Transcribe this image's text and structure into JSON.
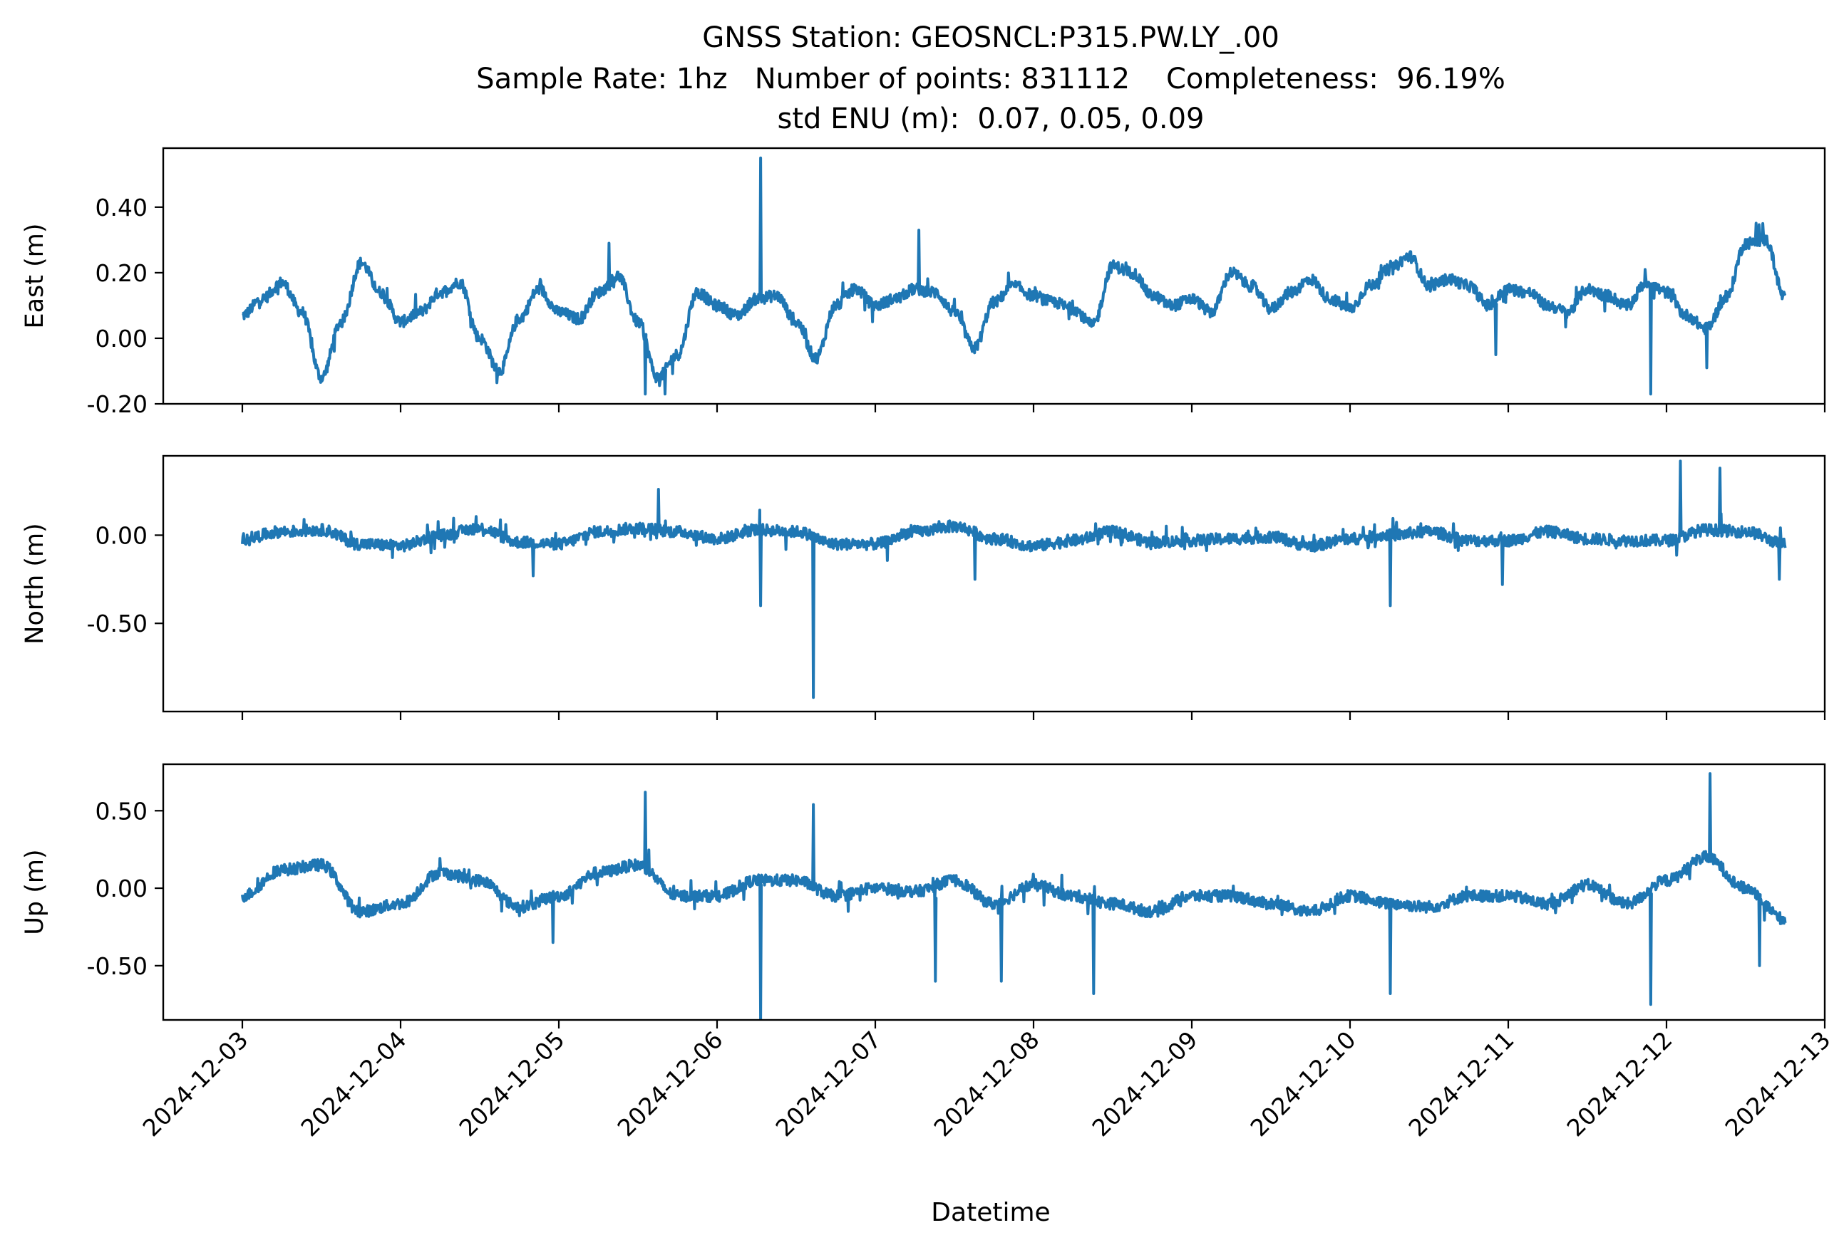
{
  "chart_data": {
    "type": "line",
    "title": "GNSS Station: GEOSNCL:P315.PW.LY_.00",
    "subtitle": "Sample Rate: 1hz   Number of points: 831112    Completeness:  96.19%",
    "subtitle2": "std ENU (m):  0.07, 0.05, 0.09",
    "xlabel": "Datetime",
    "x_ticks": [
      "2024-12-03",
      "2024-12-04",
      "2024-12-05",
      "2024-12-06",
      "2024-12-07",
      "2024-12-08",
      "2024-12-09",
      "2024-12-10",
      "2024-12-11",
      "2024-12-12",
      "2024-12-13"
    ],
    "xlim": [
      "2024-12-02T12:00",
      "2024-12-13T00:00"
    ],
    "line_color": "#1f77b4",
    "grid": false,
    "panels": [
      {
        "ylabel": "East (m)",
        "ylim": [
          -0.2,
          0.58
        ],
        "y_ticks": [
          {
            "v": -0.2,
            "label": "-0.20"
          },
          {
            "v": 0.0,
            "label": "0.00"
          },
          {
            "v": 0.2,
            "label": "0.20"
          },
          {
            "v": 0.4,
            "label": "0.40"
          }
        ],
        "series": {
          "x": [
            "2024-12-03T00:00",
            "2024-12-03T03:00",
            "2024-12-03T06:00",
            "2024-12-03T09:00",
            "2024-12-03T12:00",
            "2024-12-03T15:00",
            "2024-12-03T18:00",
            "2024-12-03T21:00",
            "2024-12-04T00:00",
            "2024-12-04T03:00",
            "2024-12-04T06:00",
            "2024-12-04T09:00",
            "2024-12-04T12:00",
            "2024-12-04T15:00",
            "2024-12-04T18:00",
            "2024-12-04T21:00",
            "2024-12-05T00:00",
            "2024-12-05T03:00",
            "2024-12-05T06:00",
            "2024-12-05T09:00",
            "2024-12-05T12:00",
            "2024-12-05T15:00",
            "2024-12-05T18:00",
            "2024-12-05T21:00",
            "2024-12-06T00:00",
            "2024-12-06T03:00",
            "2024-12-06T06:00",
            "2024-12-06T09:00",
            "2024-12-06T12:00",
            "2024-12-06T15:00",
            "2024-12-06T18:00",
            "2024-12-06T21:00",
            "2024-12-07T00:00",
            "2024-12-07T03:00",
            "2024-12-07T06:00",
            "2024-12-07T09:00",
            "2024-12-07T12:00",
            "2024-12-07T15:00",
            "2024-12-07T18:00",
            "2024-12-07T21:00",
            "2024-12-08T00:00",
            "2024-12-08T03:00",
            "2024-12-08T06:00",
            "2024-12-08T09:00",
            "2024-12-08T12:00",
            "2024-12-08T15:00",
            "2024-12-08T18:00",
            "2024-12-08T21:00",
            "2024-12-09T00:00",
            "2024-12-09T03:00",
            "2024-12-09T06:00",
            "2024-12-09T09:00",
            "2024-12-09T12:00",
            "2024-12-09T15:00",
            "2024-12-09T18:00",
            "2024-12-09T21:00",
            "2024-12-10T00:00",
            "2024-12-10T03:00",
            "2024-12-10T06:00",
            "2024-12-10T09:00",
            "2024-12-10T12:00",
            "2024-12-10T15:00",
            "2024-12-10T18:00",
            "2024-12-10T21:00",
            "2024-12-11T00:00",
            "2024-12-11T03:00",
            "2024-12-11T06:00",
            "2024-12-11T09:00",
            "2024-12-11T12:00",
            "2024-12-11T15:00",
            "2024-12-11T18:00",
            "2024-12-11T21:00",
            "2024-12-12T00:00",
            "2024-12-12T03:00",
            "2024-12-12T06:00",
            "2024-12-12T09:00",
            "2024-12-12T12:00",
            "2024-12-12T15:00",
            "2024-12-12T18:00"
          ],
          "y": [
            0.07,
            0.12,
            0.17,
            0.08,
            -0.12,
            0.05,
            0.23,
            0.14,
            0.05,
            0.08,
            0.14,
            0.17,
            0.0,
            -0.1,
            0.06,
            0.15,
            0.08,
            0.06,
            0.14,
            0.19,
            0.05,
            -0.12,
            -0.05,
            0.14,
            0.1,
            0.07,
            0.12,
            0.13,
            0.05,
            -0.06,
            0.1,
            0.15,
            0.1,
            0.12,
            0.15,
            0.14,
            0.08,
            -0.03,
            0.11,
            0.16,
            0.13,
            0.11,
            0.09,
            0.04,
            0.22,
            0.2,
            0.13,
            0.1,
            0.12,
            0.08,
            0.2,
            0.16,
            0.09,
            0.14,
            0.18,
            0.12,
            0.09,
            0.16,
            0.21,
            0.25,
            0.16,
            0.18,
            0.16,
            0.1,
            0.15,
            0.14,
            0.1,
            0.08,
            0.15,
            0.13,
            0.1,
            0.17,
            0.14,
            0.07,
            0.03,
            0.12,
            0.29,
            0.3,
            0.12
          ],
          "spikes": [
            [
              "2024-12-06T06:30",
              0.55
            ],
            [
              "2024-12-07T06:30",
              0.33
            ],
            [
              "2024-12-05T07:30",
              0.29
            ],
            [
              "2024-12-05T13:00",
              -0.17
            ],
            [
              "2024-12-05T16:00",
              -0.17
            ],
            [
              "2024-12-11T21:30",
              -0.17
            ],
            [
              "2024-12-12T06:00",
              -0.09
            ],
            [
              "2024-12-10T22:00",
              -0.05
            ],
            [
              "2024-12-12T14:30",
              0.35
            ]
          ]
        }
      },
      {
        "ylabel": "North (m)",
        "ylim": [
          -1.0,
          0.45
        ],
        "y_ticks": [
          {
            "v": -0.5,
            "label": "-0.50"
          },
          {
            "v": 0.0,
            "label": "0.00"
          }
        ],
        "series": {
          "x": [
            "2024-12-03T00:00",
            "2024-12-03T06:00",
            "2024-12-03T12:00",
            "2024-12-03T18:00",
            "2024-12-04T00:00",
            "2024-12-04T06:00",
            "2024-12-04T12:00",
            "2024-12-04T18:00",
            "2024-12-05T00:00",
            "2024-12-05T06:00",
            "2024-12-05T12:00",
            "2024-12-05T18:00",
            "2024-12-06T00:00",
            "2024-12-06T06:00",
            "2024-12-06T12:00",
            "2024-12-06T18:00",
            "2024-12-07T00:00",
            "2024-12-07T06:00",
            "2024-12-07T12:00",
            "2024-12-07T18:00",
            "2024-12-08T00:00",
            "2024-12-08T06:00",
            "2024-12-08T12:00",
            "2024-12-08T18:00",
            "2024-12-09T00:00",
            "2024-12-09T06:00",
            "2024-12-09T12:00",
            "2024-12-09T18:00",
            "2024-12-10T00:00",
            "2024-12-10T06:00",
            "2024-12-10T12:00",
            "2024-12-10T18:00",
            "2024-12-11T00:00",
            "2024-12-11T06:00",
            "2024-12-11T12:00",
            "2024-12-11T18:00",
            "2024-12-12T00:00",
            "2024-12-12T06:00",
            "2024-12-12T12:00",
            "2024-12-12T18:00"
          ],
          "y": [
            -0.02,
            0.02,
            0.03,
            -0.05,
            -0.06,
            0.0,
            0.04,
            -0.04,
            -0.05,
            0.02,
            0.04,
            0.02,
            -0.02,
            0.03,
            0.02,
            -0.05,
            -0.05,
            0.02,
            0.05,
            -0.02,
            -0.06,
            -0.03,
            0.02,
            -0.04,
            -0.03,
            -0.02,
            -0.01,
            -0.06,
            -0.02,
            0.0,
            0.02,
            -0.03,
            -0.03,
            0.02,
            -0.02,
            -0.03,
            -0.03,
            0.03,
            0.02,
            -0.05
          ],
          "spikes": [
            [
              "2024-12-06T14:30",
              -0.92
            ],
            [
              "2024-12-06T06:30",
              -0.4
            ],
            [
              "2024-12-12T02:00",
              0.42
            ],
            [
              "2024-12-12T08:00",
              0.38
            ],
            [
              "2024-12-05T15:00",
              0.26
            ],
            [
              "2024-12-10T06:00",
              -0.4
            ],
            [
              "2024-12-10T23:00",
              -0.28
            ],
            [
              "2024-12-12T17:00",
              -0.25
            ],
            [
              "2024-12-04T20:00",
              -0.23
            ],
            [
              "2024-12-07T15:00",
              -0.25
            ]
          ]
        }
      },
      {
        "ylabel": "Up (m)",
        "ylim": [
          -0.85,
          0.8
        ],
        "y_ticks": [
          {
            "v": -0.5,
            "label": "-0.50"
          },
          {
            "v": 0.0,
            "label": "0.00"
          },
          {
            "v": 0.5,
            "label": "0.50"
          }
        ],
        "series": {
          "x": [
            "2024-12-03T00:00",
            "2024-12-03T06:00",
            "2024-12-03T12:00",
            "2024-12-03T18:00",
            "2024-12-04T00:00",
            "2024-12-04T06:00",
            "2024-12-04T12:00",
            "2024-12-04T18:00",
            "2024-12-05T00:00",
            "2024-12-05T06:00",
            "2024-12-05T12:00",
            "2024-12-05T18:00",
            "2024-12-06T00:00",
            "2024-12-06T06:00",
            "2024-12-06T12:00",
            "2024-12-06T18:00",
            "2024-12-07T00:00",
            "2024-12-07T06:00",
            "2024-12-07T12:00",
            "2024-12-07T18:00",
            "2024-12-08T00:00",
            "2024-12-08T06:00",
            "2024-12-08T12:00",
            "2024-12-08T18:00",
            "2024-12-09T00:00",
            "2024-12-09T06:00",
            "2024-12-09T12:00",
            "2024-12-09T18:00",
            "2024-12-10T00:00",
            "2024-12-10T06:00",
            "2024-12-10T12:00",
            "2024-12-10T18:00",
            "2024-12-11T00:00",
            "2024-12-11T06:00",
            "2024-12-11T12:00",
            "2024-12-11T18:00",
            "2024-12-12T00:00",
            "2024-12-12T06:00",
            "2024-12-12T12:00",
            "2024-12-12T18:00"
          ],
          "y": [
            -0.05,
            0.12,
            0.15,
            -0.15,
            -0.1,
            0.1,
            0.05,
            -0.12,
            -0.05,
            0.1,
            0.15,
            -0.05,
            -0.05,
            0.05,
            0.05,
            -0.05,
            0.0,
            -0.02,
            0.05,
            -0.1,
            0.02,
            -0.05,
            -0.1,
            -0.15,
            -0.05,
            -0.05,
            -0.1,
            -0.15,
            -0.05,
            -0.1,
            -0.12,
            -0.05,
            -0.05,
            -0.1,
            0.02,
            -0.1,
            0.05,
            0.2,
            0.0,
            -0.2
          ],
          "spikes": [
            [
              "2024-12-06T06:30",
              -0.85
            ],
            [
              "2024-12-12T06:30",
              0.74
            ],
            [
              "2024-12-05T13:00",
              0.62
            ],
            [
              "2024-12-06T14:30",
              0.54
            ],
            [
              "2024-12-11T21:30",
              -0.75
            ],
            [
              "2024-12-07T09:00",
              -0.6
            ],
            [
              "2024-12-07T19:00",
              -0.6
            ],
            [
              "2024-12-08T09:00",
              -0.68
            ],
            [
              "2024-12-10T06:00",
              -0.68
            ],
            [
              "2024-12-12T14:00",
              -0.5
            ],
            [
              "2024-12-04T23:00",
              -0.35
            ]
          ]
        }
      }
    ]
  }
}
